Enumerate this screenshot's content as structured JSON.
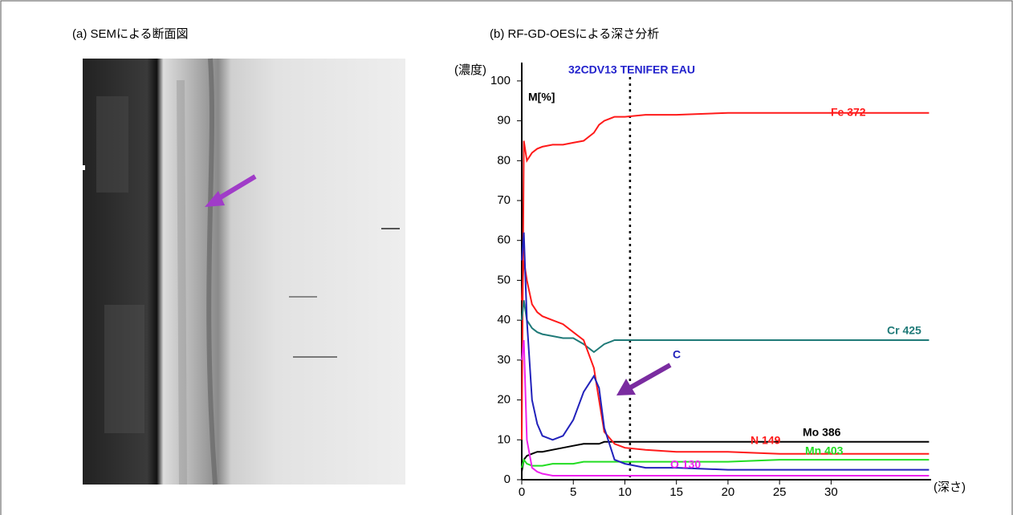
{
  "panels": {
    "left_title": "(a) SEMによる断面図",
    "right_title": "(b) RF-GD-OESによる深さ分析"
  },
  "chart_data": {
    "type": "line",
    "title": "32CDV13 TENIFER EAU",
    "y_unit": "M[%]",
    "y_label": "(濃度)",
    "x_label": "(深さ)",
    "annotation": "C",
    "marker_x": 10.5,
    "x": [
      0,
      0.2,
      0.5,
      1,
      1.5,
      2,
      3,
      4,
      5,
      6,
      7,
      7.5,
      8,
      9,
      10,
      12,
      15,
      20,
      25,
      30,
      35,
      39.5
    ],
    "xlim": [
      0,
      39.7
    ],
    "xticks": [
      0,
      5,
      10,
      15,
      20,
      25,
      30
    ],
    "ylim": [
      0,
      104
    ],
    "yticks": [
      0,
      10,
      20,
      30,
      40,
      50,
      60,
      70,
      80,
      90,
      100
    ],
    "series": [
      {
        "name": "Fe 372",
        "color": "#ff1a1a",
        "values": [
          10,
          85,
          80,
          82,
          83,
          83.5,
          84,
          84,
          84.5,
          85,
          87,
          89,
          90,
          91,
          91,
          91.5,
          91.5,
          92,
          92,
          92,
          92,
          92
        ]
      },
      {
        "name": "Cr 425",
        "color": "#1f7a78",
        "values": [
          40,
          45,
          40,
          38,
          37,
          36.5,
          36,
          35.5,
          35.5,
          34,
          32,
          33,
          34,
          35,
          35,
          35,
          35,
          35,
          35,
          35,
          35,
          35
        ]
      },
      {
        "name": "Mo 386",
        "color": "#000000",
        "values": [
          2,
          5,
          6,
          6.5,
          7,
          7,
          7.5,
          8,
          8.5,
          9,
          9,
          9,
          9.5,
          9.5,
          9.5,
          9.5,
          9.5,
          9.5,
          9.5,
          9.5,
          9.5,
          9.5
        ]
      },
      {
        "name": "N 149",
        "color": "#ff1a1a",
        "values": [
          45,
          55,
          50,
          44,
          42,
          41,
          40,
          39,
          37,
          35,
          28,
          20,
          12,
          9,
          8,
          7.5,
          7,
          7,
          6.5,
          6.5,
          6.5,
          6.5
        ]
      },
      {
        "name": "Mn 403",
        "color": "#22dd22",
        "values": [
          3,
          5,
          4,
          3.5,
          3.5,
          3.5,
          4,
          4,
          4,
          4.5,
          4.5,
          4.5,
          4.5,
          4.5,
          4.5,
          4.5,
          4.5,
          4.5,
          5,
          5,
          5,
          5
        ]
      },
      {
        "name": "O 130",
        "color": "#ee22ee",
        "values": [
          30,
          35,
          10,
          3,
          2,
          1.5,
          1,
          1,
          1,
          1,
          1,
          1,
          1,
          1,
          1,
          1,
          1,
          1,
          1,
          1,
          1,
          1
        ]
      },
      {
        "name": "C",
        "color": "#2222bb",
        "values": [
          55,
          62,
          40,
          20,
          14,
          11,
          10,
          11,
          15,
          22,
          26,
          23,
          13,
          5,
          4,
          3,
          3,
          2.5,
          2.5,
          2.5,
          2.5,
          2.5
        ]
      }
    ]
  }
}
